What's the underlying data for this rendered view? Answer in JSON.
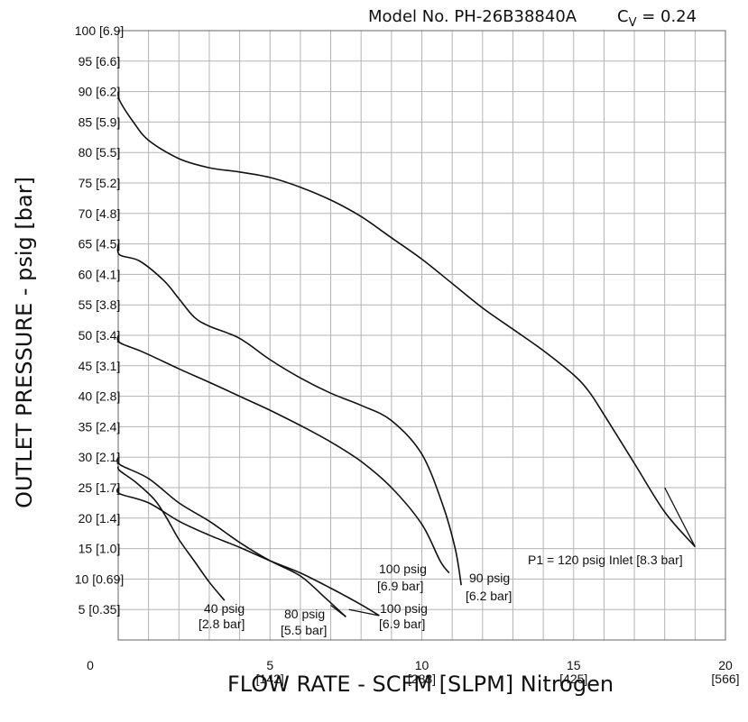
{
  "header": {
    "model": "Model No. PH-26B38840A",
    "cv_label": "C",
    "cv_sub": "V",
    "cv_value": " = 0.24"
  },
  "chart_data": {
    "type": "line",
    "xlabel": "FLOW RATE - SCFM [SLPM] Nitrogen",
    "ylabel": "OUTLET PRESSURE - psig [bar]",
    "xlim": [
      0,
      20
    ],
    "ylim": [
      0,
      100
    ],
    "grid": true,
    "x_ticks": [
      {
        "value": 0,
        "label": "0",
        "sub": ""
      },
      {
        "value": 5,
        "label": "5",
        "sub": "[142]"
      },
      {
        "value": 10,
        "label": "10",
        "sub": "[283]"
      },
      {
        "value": 15,
        "label": "15",
        "sub": "[425]"
      },
      {
        "value": 20,
        "label": "20",
        "sub": "[566]"
      }
    ],
    "y_ticks": [
      {
        "value": 5,
        "label": "5 [0.35]"
      },
      {
        "value": 10,
        "label": "10 [0.69]"
      },
      {
        "value": 15,
        "label": "15 [1.0]"
      },
      {
        "value": 20,
        "label": "20 [1.4]"
      },
      {
        "value": 25,
        "label": "25 [1.7]"
      },
      {
        "value": 30,
        "label": "30 [2.1]"
      },
      {
        "value": 35,
        "label": "35 [2.4]"
      },
      {
        "value": 40,
        "label": "40 [2.8]"
      },
      {
        "value": 45,
        "label": "45 [3.1]"
      },
      {
        "value": 50,
        "label": "50 [3.4]"
      },
      {
        "value": 55,
        "label": "55 [3.8]"
      },
      {
        "value": 60,
        "label": "60 [4.1]"
      },
      {
        "value": 65,
        "label": "65 [4.5]"
      },
      {
        "value": 70,
        "label": "70 [4.8]"
      },
      {
        "value": 75,
        "label": "75 [5.2]"
      },
      {
        "value": 80,
        "label": "80 [5.5]"
      },
      {
        "value": 85,
        "label": "85 [5.9]"
      },
      {
        "value": 90,
        "label": "90 [6.2]"
      },
      {
        "value": 95,
        "label": "95 [6.6]"
      },
      {
        "value": 100,
        "label": "100 [6.9]"
      }
    ],
    "series": [
      {
        "labels": [
          "P1 = 120 psig Inlet [8.3 bar]"
        ],
        "leader": [
          [
            19.0,
            15.3
          ],
          [
            18.0,
            25
          ]
        ],
        "points": [
          [
            0,
            90
          ],
          [
            0.05,
            88.5
          ],
          [
            0.5,
            85
          ],
          [
            1.0,
            82
          ],
          [
            2.0,
            79
          ],
          [
            3.0,
            77.5
          ],
          [
            4.0,
            76.8
          ],
          [
            5.0,
            75.9
          ],
          [
            6.0,
            74.3
          ],
          [
            7.0,
            72.2
          ],
          [
            8.0,
            69.5
          ],
          [
            9.0,
            66.0
          ],
          [
            10.0,
            62.5
          ],
          [
            11.0,
            58.5
          ],
          [
            12.0,
            54.5
          ],
          [
            13.0,
            51.0
          ],
          [
            14.0,
            47.5
          ],
          [
            15.0,
            43.5
          ],
          [
            15.5,
            40.8
          ],
          [
            16.0,
            37.0
          ],
          [
            17.0,
            29.0
          ],
          [
            18.0,
            21.0
          ],
          [
            19.0,
            15.3
          ]
        ]
      },
      {
        "labels": [
          "90 psig",
          "[6.2 bar]"
        ],
        "leader": [],
        "points": [
          [
            0,
            65
          ],
          [
            0.05,
            63.2
          ],
          [
            0.7,
            62.2
          ],
          [
            1.5,
            59.0
          ],
          [
            2.0,
            56.0
          ],
          [
            2.5,
            53.0
          ],
          [
            3.0,
            51.5
          ],
          [
            4.0,
            49.5
          ],
          [
            5.0,
            46.0
          ],
          [
            6.0,
            43.0
          ],
          [
            7.0,
            40.5
          ],
          [
            8.0,
            38.5
          ],
          [
            9.0,
            36.0
          ],
          [
            10.0,
            30.5
          ],
          [
            10.7,
            22.0
          ],
          [
            11.1,
            15.0
          ],
          [
            11.3,
            9.0
          ]
        ]
      },
      {
        "labels": [
          "100 psig",
          "[6.9 bar]"
        ],
        "leader": [],
        "points": [
          [
            0,
            50
          ],
          [
            0.05,
            48.8
          ],
          [
            0.8,
            47.3
          ],
          [
            2.0,
            44.5
          ],
          [
            3.0,
            42.3
          ],
          [
            4.0,
            40.0
          ],
          [
            5.0,
            37.7
          ],
          [
            6.0,
            35.2
          ],
          [
            7.0,
            32.5
          ],
          [
            8.0,
            29.3
          ],
          [
            9.0,
            25.0
          ],
          [
            10.0,
            19.0
          ],
          [
            10.6,
            13.0
          ],
          [
            10.9,
            11.0
          ]
        ]
      },
      {
        "labels": [
          "40 psig",
          "[2.8 bar]"
        ],
        "leader": [],
        "points": [
          [
            0,
            28.5
          ],
          [
            0.05,
            27.8
          ],
          [
            0.6,
            25.8
          ],
          [
            1.2,
            23.0
          ],
          [
            1.6,
            20.0
          ],
          [
            2.0,
            16.5
          ],
          [
            2.5,
            13.0
          ],
          [
            3.0,
            9.5
          ],
          [
            3.5,
            6.5
          ]
        ]
      },
      {
        "labels": [
          "80 psig",
          "[5.5 bar]"
        ],
        "leader": [
          [
            7.5,
            3.8
          ],
          [
            7.0,
            5.7
          ]
        ],
        "points": [
          [
            0,
            30
          ],
          [
            0.05,
            28.8
          ],
          [
            1.0,
            26.5
          ],
          [
            2.0,
            22.5
          ],
          [
            3.0,
            19.5
          ],
          [
            4.0,
            16.0
          ],
          [
            5.0,
            13.0
          ],
          [
            6.0,
            10.5
          ],
          [
            6.8,
            7.0
          ],
          [
            7.5,
            3.8
          ]
        ]
      },
      {
        "labels": [
          "100 psig",
          "[6.9 bar]"
        ],
        "leader": [
          [
            8.6,
            4.0
          ],
          [
            7.6,
            5.0
          ]
        ],
        "points": [
          [
            0,
            25
          ],
          [
            0.05,
            24.0
          ],
          [
            1.0,
            22.5
          ],
          [
            2.0,
            19.5
          ],
          [
            3.0,
            17.2
          ],
          [
            4.0,
            15.2
          ],
          [
            5.0,
            13.0
          ],
          [
            6.0,
            11.0
          ],
          [
            7.0,
            8.5
          ],
          [
            8.0,
            5.8
          ],
          [
            8.6,
            4.0
          ]
        ]
      }
    ]
  }
}
